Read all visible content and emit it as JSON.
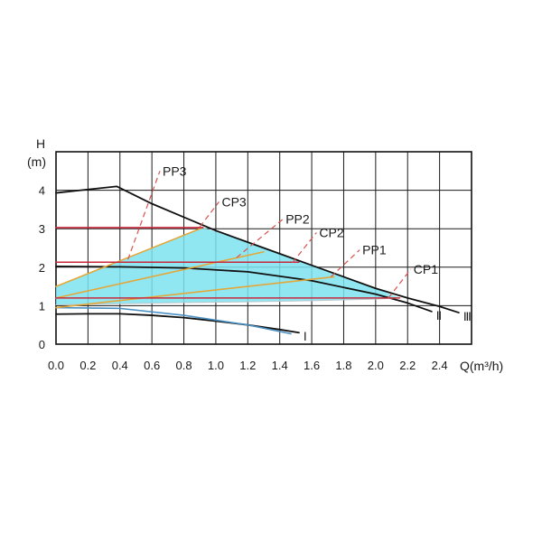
{
  "chart_data": {
    "type": "line",
    "ylabel": "H",
    "yunit": "(m)",
    "xlabel": "Q(m³/h)",
    "xlim": [
      0,
      2.6
    ],
    "ylim": [
      0,
      5
    ],
    "x_ticks": [
      "0.0",
      "0.2",
      "0.4",
      "0.6",
      "0.8",
      "1.0",
      "1.2",
      "1.4",
      "1.6",
      "1.8",
      "2.0",
      "2.2",
      "2.4"
    ],
    "y_ticks": [
      "0",
      "1",
      "2",
      "3",
      "4"
    ],
    "grid": true,
    "colors": {
      "axis": "#111111",
      "grid": "#1a1a1a",
      "curve": "#111111",
      "constant_pressure": "#c8283c",
      "proportional_pressure": "#e3a73a",
      "dashed": "#d9534f",
      "shaded_area": "#7ee3ee",
      "blue_curve": "#4a90c2"
    },
    "series": [
      {
        "name": "Ⅰ",
        "kind": "speed",
        "x": [
          0,
          0.2,
          0.4,
          0.6,
          0.8,
          1.0,
          1.2,
          1.4,
          1.52
        ],
        "y": [
          0.78,
          0.79,
          0.79,
          0.75,
          0.69,
          0.6,
          0.5,
          0.38,
          0.3
        ]
      },
      {
        "name": "Ⅱ",
        "kind": "speed",
        "x": [
          0,
          0.4,
          0.8,
          1.2,
          1.6,
          2.0,
          2.2,
          2.35
        ],
        "y": [
          2.02,
          2.01,
          1.98,
          1.88,
          1.65,
          1.3,
          1.07,
          0.85
        ]
      },
      {
        "name": "Ⅲ",
        "kind": "speed",
        "x": [
          0,
          0.2,
          0.38,
          0.6,
          0.8,
          1.0,
          1.2,
          1.4,
          1.6,
          1.8,
          2.0,
          2.2,
          2.4,
          2.52
        ],
        "y": [
          3.93,
          4.02,
          4.1,
          3.65,
          3.3,
          2.95,
          2.65,
          2.35,
          2.05,
          1.75,
          1.45,
          1.2,
          0.98,
          0.82
        ]
      },
      {
        "name": "",
        "kind": "blue",
        "x": [
          0,
          0.4,
          0.8,
          1.2,
          1.47
        ],
        "y": [
          0.95,
          0.93,
          0.75,
          0.5,
          0.27
        ]
      },
      {
        "name": "",
        "kind": "boundary",
        "x": [
          0,
          0.4,
          0.8,
          1.2,
          1.6,
          1.8,
          2.0,
          2.1,
          2.15
        ],
        "y": [
          1.02,
          1.05,
          1.08,
          1.1,
          1.13,
          1.15,
          1.17,
          1.19,
          1.2
        ]
      },
      {
        "name": "PP3",
        "kind": "proportional",
        "x": [
          0,
          0.92
        ],
        "y": [
          1.5,
          3.03
        ]
      },
      {
        "name": "PP2",
        "kind": "proportional",
        "x": [
          0,
          1.3
        ],
        "y": [
          1.2,
          2.4
        ]
      },
      {
        "name": "PP1",
        "kind": "proportional",
        "x": [
          0,
          1.74
        ],
        "y": [
          0.95,
          1.75
        ]
      },
      {
        "name": "CP3",
        "kind": "constant",
        "x": [
          0,
          0.92
        ],
        "y": [
          3.03,
          3.03
        ]
      },
      {
        "name": "CP2",
        "kind": "constant",
        "x": [
          0,
          1.52
        ],
        "y": [
          2.13,
          2.13
        ]
      },
      {
        "name": "CP1",
        "kind": "constant",
        "x": [
          0,
          2.15
        ],
        "y": [
          1.2,
          1.2
        ]
      }
    ],
    "shaded_area": {
      "upper": {
        "x": [
          0,
          0.92,
          1.2,
          1.6,
          2.0,
          2.15
        ],
        "y": [
          1.5,
          3.03,
          2.65,
          2.05,
          1.45,
          1.2
        ]
      },
      "lower": {
        "x": [
          2.15,
          1.6,
          1.2,
          0.8,
          0.4,
          0
        ],
        "y": [
          1.2,
          1.13,
          1.1,
          1.08,
          1.05,
          1.02
        ]
      }
    },
    "annotations": [
      {
        "text": "PP3",
        "from": [
          0.45,
          2.2
        ],
        "to": [
          0.65,
          4.5
        ]
      },
      {
        "text": "CP3",
        "from": [
          0.9,
          3.05
        ],
        "to": [
          1.02,
          3.7
        ]
      },
      {
        "text": "PP2",
        "from": [
          1.13,
          2.25
        ],
        "to": [
          1.42,
          3.25
        ]
      },
      {
        "text": "CP2",
        "from": [
          1.48,
          2.12
        ],
        "to": [
          1.63,
          2.9
        ]
      },
      {
        "text": "PP1",
        "from": [
          1.72,
          1.75
        ],
        "to": [
          1.9,
          2.45
        ]
      },
      {
        "text": "CP1",
        "from": [
          2.08,
          1.2
        ],
        "to": [
          2.22,
          1.95
        ]
      }
    ]
  }
}
